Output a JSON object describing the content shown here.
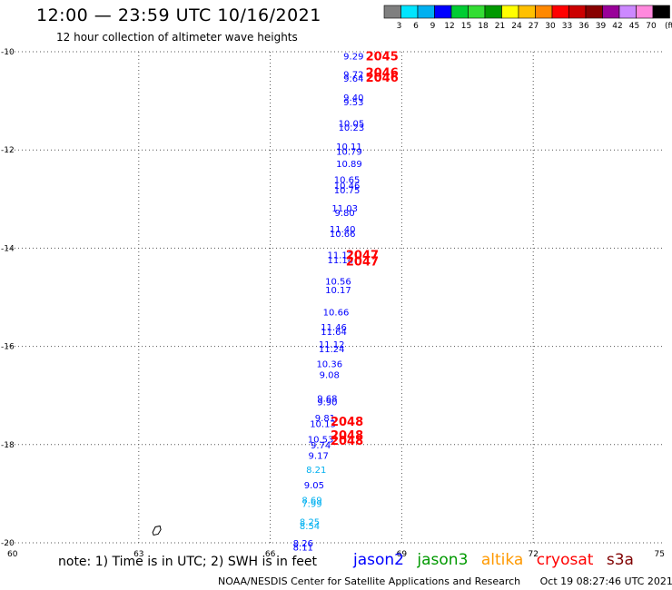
{
  "header": {
    "title": "12:00 — 23:59 UTC 10/16/2021",
    "subtitle": "12 hour collection of altimeter wave heights"
  },
  "colorbar": {
    "labels": [
      "3",
      "6",
      "9",
      "12",
      "15",
      "18",
      "21",
      "24",
      "27",
      "30",
      "33",
      "36",
      "39",
      "42",
      "45",
      "70",
      "(ft)"
    ],
    "colors": [
      "#7f7f7f",
      "#00e5ff",
      "#00b0f0",
      "#0000ff",
      "#00cc33",
      "#33dd33",
      "#009900",
      "#ffff00",
      "#ffc000",
      "#ff8800",
      "#ff0000",
      "#cc0000",
      "#880000",
      "#990099",
      "#cc88ff",
      "#ff88dd",
      "#000000"
    ]
  },
  "note": "note:  1) Time is in UTC;  2) SWH is in feet",
  "legend": [
    {
      "name": "jason2",
      "color": "#0000ff"
    },
    {
      "name": "jason3",
      "color": "#009900"
    },
    {
      "name": "altika",
      "color": "#ff9900"
    },
    {
      "name": "cryosat",
      "color": "#ff0000"
    },
    {
      "name": "s3a",
      "color": "#800000"
    }
  ],
  "footer": {
    "credit": "NOAA/NESDIS Center for Satellite Applications and Research",
    "timestamp": "Oct 19 08:27:46 UTC 2021"
  },
  "chart_data": {
    "type": "scatter",
    "title": "12:00 — 23:59 UTC 10/16/2021",
    "xlim": [
      60,
      75
    ],
    "ylim": [
      -20,
      -10
    ],
    "xticks": [
      "60",
      "63",
      "66",
      "69",
      "72",
      "75"
    ],
    "yticks": [
      "-10",
      "-12",
      "-14",
      "-16",
      "-18",
      "-20"
    ],
    "grid": true,
    "swh_labels": [
      {
        "lon": 67.9,
        "lat": -10.08,
        "text": "9.29",
        "color": "#0000ff"
      },
      {
        "lon": 67.9,
        "lat": -10.45,
        "text": "9.72",
        "color": "#0000ff"
      },
      {
        "lon": 67.9,
        "lat": -10.54,
        "text": "9.64",
        "color": "#0000ff"
      },
      {
        "lon": 67.9,
        "lat": -10.92,
        "text": "9.40",
        "color": "#0000ff"
      },
      {
        "lon": 67.9,
        "lat": -11.02,
        "text": "9.53",
        "color": "#0000ff"
      },
      {
        "lon": 67.85,
        "lat": -11.45,
        "text": "10.05",
        "color": "#0000ff"
      },
      {
        "lon": 67.85,
        "lat": -11.53,
        "text": "10.23",
        "color": "#0000ff"
      },
      {
        "lon": 67.8,
        "lat": -11.92,
        "text": "10.11",
        "color": "#0000ff"
      },
      {
        "lon": 67.8,
        "lat": -12.02,
        "text": "10.79",
        "color": "#0000ff"
      },
      {
        "lon": 67.8,
        "lat": -12.27,
        "text": "10.89",
        "color": "#0000ff"
      },
      {
        "lon": 67.75,
        "lat": -12.6,
        "text": "10.65",
        "color": "#0000ff"
      },
      {
        "lon": 67.75,
        "lat": -12.72,
        "text": "10.46",
        "color": "#0000ff"
      },
      {
        "lon": 67.75,
        "lat": -12.81,
        "text": "10.75",
        "color": "#0000ff"
      },
      {
        "lon": 67.7,
        "lat": -13.18,
        "text": "11.03",
        "color": "#0000ff"
      },
      {
        "lon": 67.7,
        "lat": -13.27,
        "text": "9.80",
        "color": "#0000ff"
      },
      {
        "lon": 67.65,
        "lat": -13.6,
        "text": "11.40",
        "color": "#0000ff"
      },
      {
        "lon": 67.65,
        "lat": -13.7,
        "text": "10.66",
        "color": "#0000ff"
      },
      {
        "lon": 67.6,
        "lat": -14.13,
        "text": "11.12",
        "color": "#0000ff"
      },
      {
        "lon": 67.6,
        "lat": -14.23,
        "text": "11.14",
        "color": "#0000ff"
      },
      {
        "lon": 67.55,
        "lat": -14.67,
        "text": "10.56",
        "color": "#0000ff"
      },
      {
        "lon": 67.55,
        "lat": -14.84,
        "text": "10.17",
        "color": "#0000ff"
      },
      {
        "lon": 67.5,
        "lat": -15.3,
        "text": "10.66",
        "color": "#0000ff"
      },
      {
        "lon": 67.45,
        "lat": -15.6,
        "text": "11.46",
        "color": "#0000ff"
      },
      {
        "lon": 67.45,
        "lat": -15.69,
        "text": "11.64",
        "color": "#0000ff"
      },
      {
        "lon": 67.4,
        "lat": -15.95,
        "text": "11.12",
        "color": "#0000ff"
      },
      {
        "lon": 67.4,
        "lat": -16.04,
        "text": "11.24",
        "color": "#0000ff"
      },
      {
        "lon": 67.35,
        "lat": -16.35,
        "text": "10.36",
        "color": "#0000ff"
      },
      {
        "lon": 67.35,
        "lat": -16.57,
        "text": "9.08",
        "color": "#0000ff"
      },
      {
        "lon": 67.3,
        "lat": -17.05,
        "text": "9.68",
        "color": "#0000ff"
      },
      {
        "lon": 67.3,
        "lat": -17.13,
        "text": "9.90",
        "color": "#0000ff"
      },
      {
        "lon": 67.25,
        "lat": -17.45,
        "text": "9.81",
        "color": "#0000ff"
      },
      {
        "lon": 67.2,
        "lat": -17.57,
        "text": "10.13",
        "color": "#0000ff"
      },
      {
        "lon": 67.15,
        "lat": -17.88,
        "text": "10.53",
        "color": "#0000ff"
      },
      {
        "lon": 67.15,
        "lat": -18.0,
        "text": "9.74",
        "color": "#0000ff"
      },
      {
        "lon": 67.1,
        "lat": -18.22,
        "text": "9.17",
        "color": "#0000ff"
      },
      {
        "lon": 67.05,
        "lat": -18.5,
        "text": "8.21",
        "color": "#00b0f0"
      },
      {
        "lon": 67.0,
        "lat": -18.82,
        "text": "9.05",
        "color": "#0000ff"
      },
      {
        "lon": 66.95,
        "lat": -19.12,
        "text": "8.69",
        "color": "#00b0f0"
      },
      {
        "lon": 66.95,
        "lat": -19.2,
        "text": "7.99",
        "color": "#00b0f0"
      },
      {
        "lon": 66.9,
        "lat": -19.57,
        "text": "8.25",
        "color": "#00b0f0"
      },
      {
        "lon": 66.9,
        "lat": -19.65,
        "text": "8.54",
        "color": "#00b0f0"
      },
      {
        "lon": 66.75,
        "lat": -20.0,
        "text": "8.26",
        "color": "#0000ff"
      },
      {
        "lon": 66.75,
        "lat": -20.08,
        "text": "8.11",
        "color": "#0000ff"
      }
    ],
    "time_labels": [
      {
        "lon": 68.55,
        "lat": -10.08,
        "text": "2045"
      },
      {
        "lon": 68.55,
        "lat": -10.42,
        "text": "2046"
      },
      {
        "lon": 68.55,
        "lat": -10.52,
        "text": "2046"
      },
      {
        "lon": 68.1,
        "lat": -14.13,
        "text": "2047"
      },
      {
        "lon": 68.1,
        "lat": -14.26,
        "text": "2047"
      },
      {
        "lon": 67.75,
        "lat": -17.52,
        "text": "2048"
      },
      {
        "lon": 67.75,
        "lat": -17.8,
        "text": "2048"
      },
      {
        "lon": 67.75,
        "lat": -17.91,
        "text": "2048"
      }
    ],
    "land": [
      {
        "name": "island",
        "lon": 63.4,
        "lat": -19.75
      }
    ]
  }
}
